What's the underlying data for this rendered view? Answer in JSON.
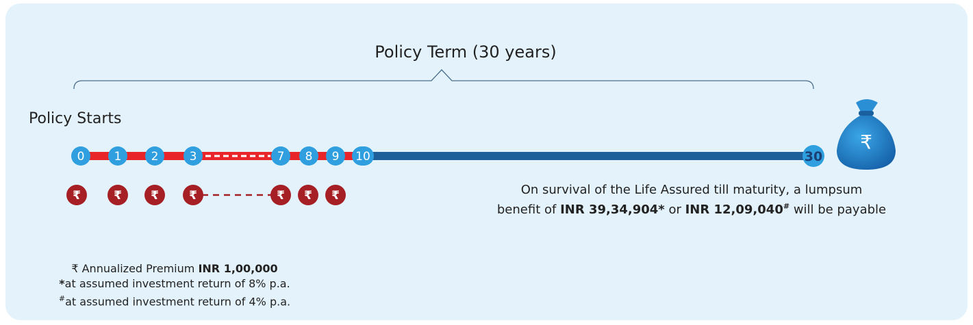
{
  "title": "Policy Term (30 years)",
  "start_label": "Policy Starts",
  "years": [
    "0",
    "1",
    "2",
    "3",
    "7",
    "8",
    "9",
    "10",
    "30"
  ],
  "currency_symbol": "₹",
  "maturity": {
    "line1": "On survival of the Life Assured till maturity, a lumpsum",
    "line2": [
      "benefit of",
      "INR 39,34,904*",
      "or",
      "INR 12,09,040",
      "#",
      "will be payable"
    ]
  },
  "footer": {
    "premium": [
      "₹ Annualized Premium",
      "INR 1,00,000"
    ],
    "note1": [
      "*",
      "at assumed investment return of 8% p.a."
    ],
    "note2": [
      "#",
      "at assumed investment return of 4% p.a."
    ]
  }
}
